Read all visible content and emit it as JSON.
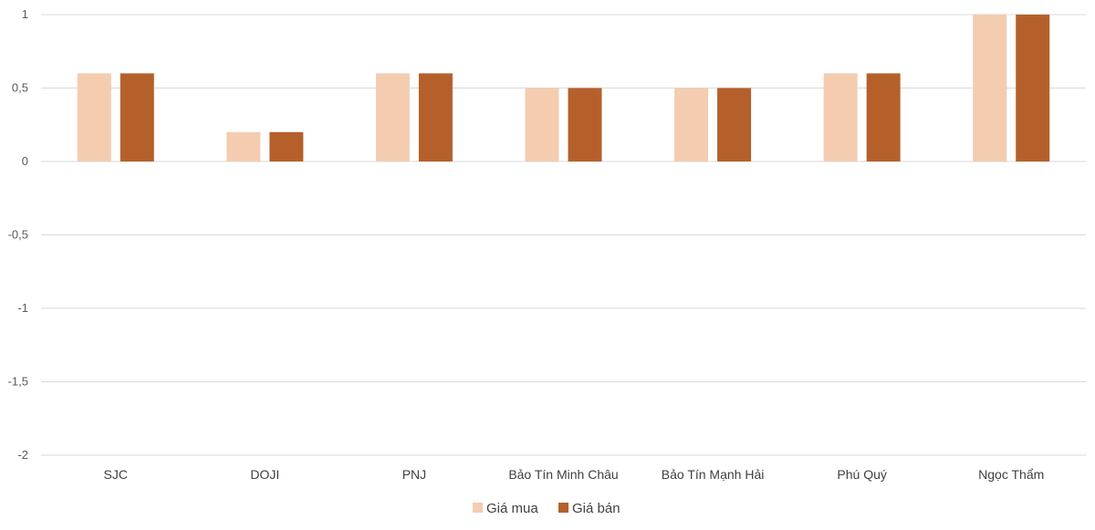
{
  "chart_data": {
    "type": "bar",
    "categories": [
      "SJC",
      "DOJI",
      "PNJ",
      "Bảo Tín Minh Châu",
      "Bảo Tín Mạnh Hải",
      "Phú Quý",
      "Ngọc Thẩm"
    ],
    "series": [
      {
        "name": "Giá mua",
        "values": [
          0.6,
          0.2,
          0.6,
          0.5,
          0.5,
          0.6,
          1.0
        ],
        "color": "#f4ccb0"
      },
      {
        "name": "Giá bán",
        "values": [
          0.6,
          0.2,
          0.6,
          0.5,
          0.5,
          0.6,
          1.0
        ],
        "color": "#b5602b"
      }
    ],
    "yticks": [
      1,
      0.5,
      0,
      -0.5,
      -1,
      -1.5,
      -2
    ],
    "ytick_labels": [
      "1",
      "0,5",
      "0",
      "-0,5",
      "-1",
      "-1,5",
      "-2"
    ],
    "ylim": [
      -2,
      1
    ],
    "grid": true,
    "legend_position": "bottom",
    "title": "",
    "xlabel": "",
    "ylabel": ""
  }
}
